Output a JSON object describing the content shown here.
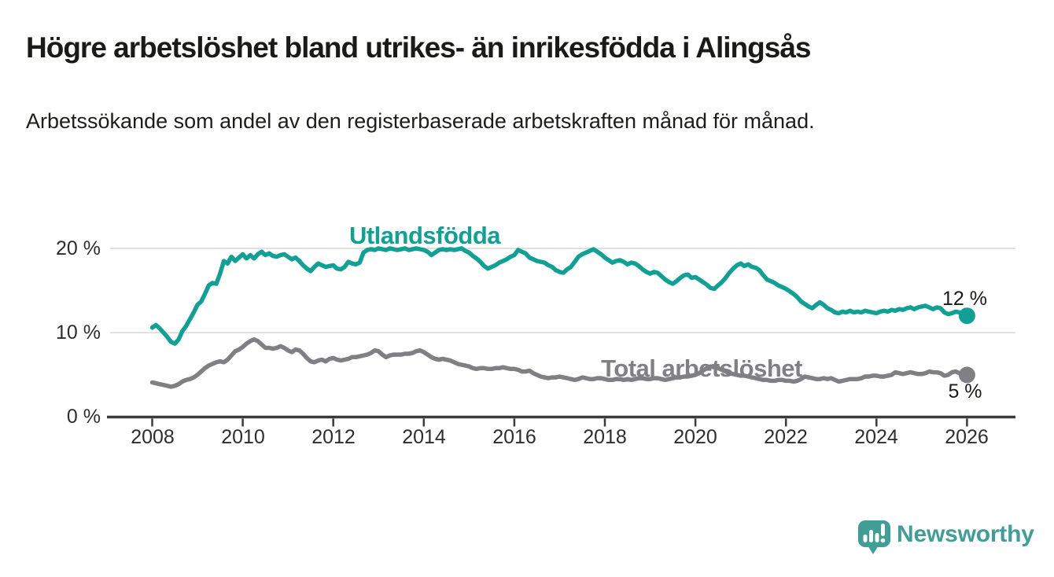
{
  "header": {
    "title": "Högre arbetslöshet bland utrikes- än inrikesfödda i Alingsås",
    "subtitle": "Arbetssökande som andel av den registerbaserade arbetskraften månad för månad."
  },
  "chart_data": {
    "type": "line",
    "title": "Högre arbetslöshet bland utrikes- än inrikesfödda i Alingsås",
    "subtitle": "Arbetssökande som andel av den registerbaserade arbetskraften månad för månad.",
    "x_axis": {
      "unit": "year",
      "start": 2008.0,
      "step_years": 0.08333333,
      "tick_years": [
        2008,
        2010,
        2012,
        2014,
        2016,
        2018,
        2020,
        2022,
        2024,
        2026
      ],
      "labels": [
        "2008",
        "2010",
        "2012",
        "2014",
        "2016",
        "2018",
        "2020",
        "2022",
        "2024",
        "2026"
      ]
    },
    "y_axis": {
      "unit": "%",
      "range": [
        0,
        21.5
      ],
      "gridline_values": [
        20,
        10
      ],
      "labels": [
        "20 %",
        "10 %",
        "0 %"
      ],
      "label_values": [
        20,
        10,
        0
      ]
    },
    "grid": "horizontal-only",
    "legend_position": "inline-labels",
    "series": [
      {
        "name": "Utlandsfödda",
        "color": "#10a094",
        "end_label": "12 %",
        "end_value": 12,
        "values": [
          10.6,
          10.9,
          10.5,
          10.0,
          9.5,
          8.9,
          8.7,
          9.2,
          10.2,
          10.8,
          11.6,
          12.4,
          13.3,
          13.7,
          14.6,
          15.6,
          15.9,
          15.8,
          17.0,
          18.5,
          18.2,
          19.0,
          18.5,
          18.9,
          19.3,
          18.8,
          19.2,
          18.8,
          19.3,
          19.6,
          19.2,
          19.4,
          19.1,
          19.0,
          19.2,
          19.3,
          19.0,
          18.7,
          18.9,
          18.5,
          18.0,
          17.6,
          17.3,
          17.8,
          18.2,
          18.0,
          17.8,
          17.9,
          18.0,
          17.6,
          17.5,
          17.8,
          18.4,
          18.2,
          18.1,
          18.3,
          19.5,
          19.8,
          19.9,
          19.8,
          20.0,
          19.9,
          19.8,
          20.0,
          19.9,
          19.8,
          19.9,
          20.0,
          19.8,
          19.9,
          20.0,
          19.9,
          19.8,
          19.6,
          19.2,
          19.5,
          19.8,
          19.9,
          19.8,
          19.9,
          19.8,
          19.9,
          20.0,
          19.7,
          19.5,
          19.1,
          18.8,
          18.4,
          17.9,
          17.6,
          17.8,
          18.0,
          18.3,
          18.5,
          18.7,
          19.0,
          19.2,
          19.8,
          19.6,
          19.4,
          18.9,
          18.7,
          18.5,
          18.4,
          18.3,
          18.0,
          17.8,
          17.4,
          17.2,
          17.1,
          17.5,
          17.8,
          18.4,
          19.0,
          19.3,
          19.5,
          19.7,
          19.9,
          19.6,
          19.3,
          18.9,
          18.6,
          18.3,
          18.5,
          18.6,
          18.4,
          18.1,
          18.3,
          18.2,
          17.9,
          17.5,
          17.2,
          17.0,
          17.2,
          17.1,
          16.7,
          16.3,
          16.0,
          15.8,
          16.1,
          16.5,
          16.8,
          16.9,
          16.5,
          16.6,
          16.3,
          16.0,
          15.7,
          15.3,
          15.2,
          15.6,
          16.0,
          16.5,
          17.1,
          17.6,
          18.0,
          18.2,
          17.9,
          18.1,
          17.8,
          17.7,
          17.4,
          16.8,
          16.3,
          16.1,
          15.9,
          15.6,
          15.4,
          15.2,
          14.9,
          14.6,
          14.2,
          13.7,
          13.4,
          13.1,
          12.9,
          13.3,
          13.6,
          13.3,
          12.9,
          12.7,
          12.4,
          12.3,
          12.5,
          12.4,
          12.6,
          12.4,
          12.5,
          12.4,
          12.6,
          12.5,
          12.4,
          12.3,
          12.5,
          12.6,
          12.5,
          12.7,
          12.6,
          12.8,
          12.7,
          12.9,
          13.0,
          12.8,
          13.0,
          13.1,
          13.2,
          13.0,
          12.8,
          13.0,
          12.9,
          12.4,
          12.2,
          12.3,
          12.5,
          12.4,
          12.2,
          12.0
        ]
      },
      {
        "name": "Total arbetslöshet",
        "color": "#7f7f84",
        "end_label": "5 %",
        "end_value": 5,
        "values": [
          4.1,
          4.0,
          3.9,
          3.8,
          3.7,
          3.6,
          3.7,
          3.9,
          4.2,
          4.4,
          4.5,
          4.7,
          5.0,
          5.4,
          5.8,
          6.1,
          6.3,
          6.5,
          6.6,
          6.5,
          6.8,
          7.3,
          7.8,
          8.0,
          8.3,
          8.7,
          9.0,
          9.2,
          9.0,
          8.6,
          8.2,
          8.2,
          8.1,
          8.2,
          8.4,
          8.2,
          7.9,
          7.7,
          8.0,
          7.9,
          7.5,
          7.0,
          6.6,
          6.5,
          6.7,
          6.8,
          6.6,
          6.9,
          7.0,
          6.8,
          6.7,
          6.8,
          6.9,
          7.1,
          7.1,
          7.2,
          7.3,
          7.4,
          7.6,
          7.9,
          7.8,
          7.4,
          7.1,
          7.3,
          7.4,
          7.4,
          7.4,
          7.5,
          7.5,
          7.6,
          7.8,
          7.9,
          7.7,
          7.4,
          7.1,
          6.9,
          6.8,
          6.9,
          6.8,
          6.7,
          6.5,
          6.3,
          6.2,
          6.1,
          6.0,
          5.8,
          5.7,
          5.8,
          5.8,
          5.7,
          5.7,
          5.8,
          5.8,
          5.9,
          5.8,
          5.7,
          5.7,
          5.6,
          5.4,
          5.4,
          5.5,
          5.2,
          5.0,
          4.8,
          4.7,
          4.6,
          4.7,
          4.7,
          4.8,
          4.7,
          4.6,
          4.5,
          4.4,
          4.5,
          4.7,
          4.6,
          4.5,
          4.5,
          4.6,
          4.6,
          4.5,
          4.4,
          4.4,
          4.5,
          4.5,
          4.4,
          4.5,
          4.4,
          4.5,
          4.6,
          4.6,
          4.5,
          4.5,
          4.6,
          4.6,
          4.5,
          4.4,
          4.5,
          4.6,
          4.7,
          4.7,
          4.8,
          4.8,
          4.9,
          5.0,
          5.2,
          5.5,
          5.8,
          6.0,
          5.9,
          5.8,
          5.6,
          5.4,
          5.2,
          5.1,
          5.0,
          4.9,
          4.9,
          4.8,
          4.7,
          4.6,
          4.5,
          4.4,
          4.4,
          4.3,
          4.3,
          4.4,
          4.4,
          4.3,
          4.3,
          4.2,
          4.3,
          4.5,
          4.8,
          4.7,
          4.6,
          4.5,
          4.5,
          4.6,
          4.5,
          4.6,
          4.4,
          4.2,
          4.3,
          4.4,
          4.5,
          4.5,
          4.5,
          4.6,
          4.8,
          4.8,
          4.9,
          4.9,
          4.8,
          4.8,
          4.9,
          5.0,
          5.3,
          5.2,
          5.1,
          5.2,
          5.3,
          5.2,
          5.1,
          5.1,
          5.2,
          5.4,
          5.3,
          5.3,
          5.2,
          4.9,
          5.0,
          5.3,
          5.4,
          5.2,
          5.1,
          5.0
        ]
      }
    ],
    "style": {
      "gridline_color": "#d9d9d9",
      "axis_color": "#3a3a3a",
      "line_width": 5.5,
      "end_dot_radius": 10.5
    }
  },
  "branding": {
    "logo_text": "Newsworthy",
    "logo_color": "#3f9e96"
  }
}
